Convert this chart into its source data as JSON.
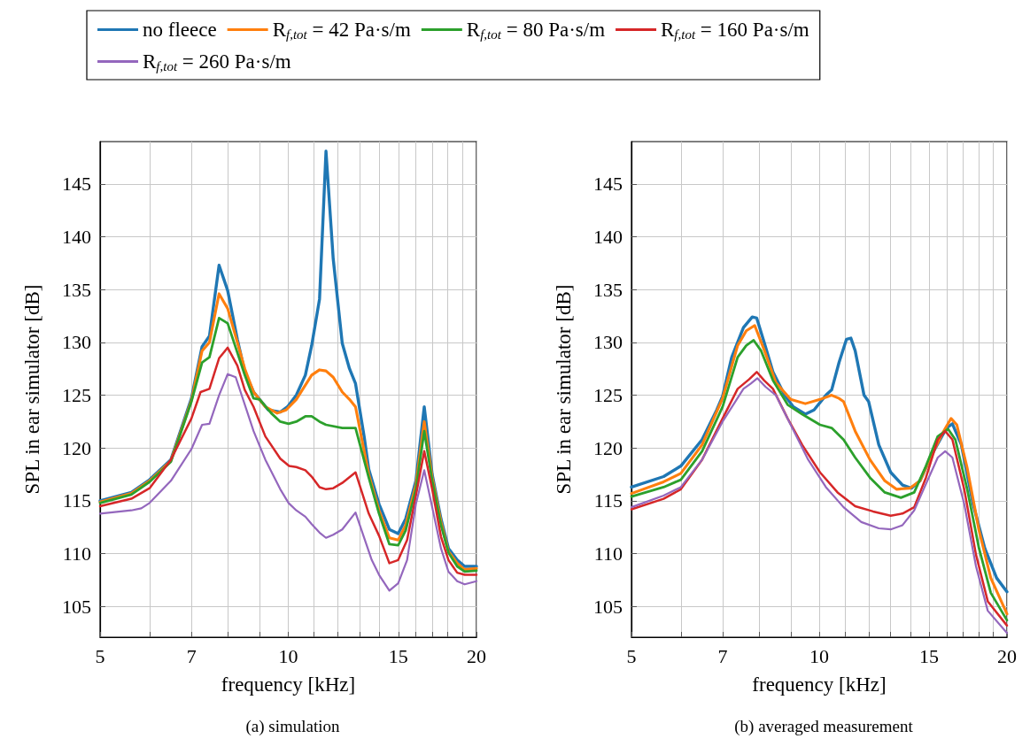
{
  "chart_data": [
    {
      "type": "line",
      "title": "(a) simulation",
      "xlabel": "frequency [kHz]",
      "ylabel": "SPL in ear simulator [dB]",
      "log": "x",
      "xlim": [
        5,
        20
      ],
      "xticks": [
        5,
        {
          "value": 6,
          "label": null
        },
        7,
        {
          "value": 8,
          "label": null
        },
        {
          "value": 9,
          "label": null
        },
        10,
        {
          "value": 11,
          "label": null
        },
        {
          "value": 12,
          "label": null
        },
        {
          "value": 13,
          "label": null
        },
        {
          "value": 14,
          "label": null
        },
        15,
        {
          "value": 16,
          "label": null
        },
        {
          "value": 17,
          "label": null
        },
        {
          "value": 18,
          "label": null
        },
        {
          "value": 19,
          "label": null
        },
        20
      ],
      "ylim": [
        102.1,
        149
      ],
      "yticks": [
        105,
        110,
        115,
        120,
        125,
        130,
        135,
        140,
        145
      ],
      "grid": true,
      "legend": "top",
      "marker": "none",
      "line_style": "solid",
      "series": [
        {
          "name": "no fleece",
          "color": "#1f77b4",
          "x": [
            5.0,
            5.61,
            6.0,
            6.49,
            7.0,
            7.28,
            7.48,
            7.75,
            8.0,
            8.29,
            8.52,
            8.8,
            9.29,
            9.71,
            9.97,
            10.3,
            10.65,
            10.9,
            11.22,
            11.49,
            11.8,
            12.2,
            12.53,
            12.81,
            13.23,
            13.45,
            13.97,
            14.51,
            14.99,
            15.41,
            16.0,
            16.5,
            16.99,
            17.55,
            18.04,
            18.63,
            19.15,
            20.0
          ],
          "values": [
            115.0,
            115.8,
            117.0,
            118.9,
            124.7,
            129.6,
            130.6,
            137.3,
            134.9,
            130.3,
            127.2,
            125.3,
            123.6,
            123.4,
            123.9,
            125.0,
            126.9,
            129.7,
            134.1,
            148.1,
            137.9,
            129.9,
            127.5,
            126.1,
            121.0,
            118.0,
            114.7,
            112.3,
            111.9,
            113.3,
            116.9,
            123.9,
            117.5,
            113.3,
            110.5,
            109.4,
            108.8,
            108.8
          ]
        },
        {
          "name": "R$_{f,tot}$ = 42 Pa·s/m",
          "color": "#ff7f0e",
          "x": [
            5.0,
            5.61,
            6.0,
            6.49,
            7.0,
            7.28,
            7.48,
            7.75,
            8.0,
            8.29,
            8.52,
            8.8,
            9.19,
            9.6,
            9.92,
            10.3,
            10.9,
            11.22,
            11.49,
            11.8,
            12.2,
            12.53,
            12.81,
            13.45,
            13.97,
            14.51,
            14.99,
            15.41,
            16.0,
            16.5,
            16.99,
            17.55,
            18.04,
            18.63,
            19.15,
            20.0
          ],
          "values": [
            114.9,
            115.7,
            116.9,
            118.8,
            124.5,
            129.2,
            130.0,
            134.6,
            133.2,
            130.0,
            127.5,
            125.3,
            123.9,
            123.3,
            123.6,
            124.6,
            126.9,
            127.4,
            127.3,
            126.7,
            125.3,
            124.6,
            123.9,
            117.5,
            114.1,
            111.5,
            111.3,
            112.7,
            116.5,
            122.5,
            117.2,
            113.0,
            110.2,
            109.1,
            108.5,
            108.6
          ]
        },
        {
          "name": "R$_{f,tot}$ = 80 Pa·s/m",
          "color": "#2ca02c",
          "x": [
            5.0,
            5.61,
            6.0,
            6.49,
            7.0,
            7.28,
            7.48,
            7.75,
            8.0,
            8.52,
            8.8,
            9.0,
            9.39,
            9.71,
            10.01,
            10.3,
            10.65,
            10.9,
            11.22,
            11.49,
            12.2,
            12.81,
            13.45,
            13.97,
            14.51,
            14.99,
            15.41,
            16.0,
            16.5,
            16.99,
            17.55,
            18.04,
            18.63,
            19.15,
            20.0
          ],
          "values": [
            114.8,
            115.6,
            116.8,
            118.7,
            124.4,
            128.1,
            128.6,
            132.3,
            131.8,
            126.9,
            124.7,
            124.6,
            123.3,
            122.5,
            122.3,
            122.5,
            123.0,
            123.0,
            122.5,
            122.2,
            121.9,
            121.9,
            117.2,
            113.8,
            110.9,
            110.8,
            112.2,
            116.1,
            121.6,
            116.9,
            112.7,
            110.1,
            108.8,
            108.3,
            108.4
          ]
        },
        {
          "name": "R$_{f,tot}$ = 160 Pa·s/m",
          "color": "#d62728",
          "x": [
            5.0,
            5.61,
            6.0,
            6.49,
            7.0,
            7.24,
            7.48,
            7.75,
            8.0,
            8.29,
            8.52,
            8.8,
            9.19,
            9.71,
            10.03,
            10.3,
            10.65,
            10.9,
            11.22,
            11.49,
            11.8,
            12.2,
            12.81,
            13.45,
            13.97,
            14.51,
            14.99,
            15.49,
            16.0,
            16.5,
            16.99,
            17.55,
            18.04,
            18.63,
            19.15,
            20.0
          ],
          "values": [
            114.5,
            115.2,
            116.2,
            118.9,
            122.8,
            125.3,
            125.6,
            128.5,
            129.5,
            127.8,
            125.5,
            123.9,
            121.1,
            119.0,
            118.3,
            118.2,
            117.9,
            117.3,
            116.3,
            116.1,
            116.2,
            116.7,
            117.7,
            113.8,
            111.7,
            109.1,
            109.4,
            111.3,
            115.5,
            119.7,
            116.1,
            111.6,
            109.4,
            108.2,
            108.0,
            108.0
          ]
        },
        {
          "name": "R$_{f,tot}$ = 260 Pa·s/m",
          "color": "#9467bd",
          "x": [
            5.0,
            5.61,
            5.82,
            6.0,
            6.49,
            7.0,
            7.28,
            7.48,
            7.75,
            8.0,
            8.24,
            8.8,
            9.19,
            9.71,
            10.01,
            10.3,
            10.65,
            10.9,
            11.22,
            11.49,
            11.8,
            12.2,
            12.81,
            13.6,
            13.97,
            14.51,
            14.99,
            15.49,
            16.0,
            16.5,
            16.99,
            17.55,
            18.04,
            18.63,
            19.15,
            20.0
          ],
          "values": [
            113.8,
            114.1,
            114.3,
            114.8,
            116.9,
            119.9,
            122.2,
            122.3,
            125.0,
            127.0,
            126.7,
            121.6,
            118.9,
            116.1,
            114.8,
            114.1,
            113.5,
            112.8,
            112.0,
            111.5,
            111.8,
            112.3,
            113.9,
            109.4,
            108.0,
            106.5,
            107.2,
            109.4,
            114.7,
            117.9,
            114.4,
            110.5,
            108.3,
            107.4,
            107.1,
            107.4
          ]
        }
      ]
    },
    {
      "type": "line",
      "title": "(b) averaged measurement",
      "xlabel": "frequency [kHz]",
      "ylabel": "SPL in ear simulator [dB]",
      "log": "x",
      "xlim": [
        5,
        20
      ],
      "xticks": [
        5,
        {
          "value": 6,
          "label": null
        },
        7,
        {
          "value": 8,
          "label": null
        },
        {
          "value": 9,
          "label": null
        },
        10,
        {
          "value": 11,
          "label": null
        },
        {
          "value": 12,
          "label": null
        },
        {
          "value": 13,
          "label": null
        },
        {
          "value": 14,
          "label": null
        },
        15,
        {
          "value": 16,
          "label": null
        },
        {
          "value": 17,
          "label": null
        },
        {
          "value": 18,
          "label": null
        },
        {
          "value": 19,
          "label": null
        },
        20
      ],
      "ylim": [
        102.1,
        149
      ],
      "yticks": [
        105,
        110,
        115,
        120,
        125,
        130,
        135,
        140,
        145
      ],
      "grid": true,
      "marker": "none",
      "line_style": "solid",
      "series": [
        {
          "color": "#1f77b4",
          "x": [
            5.0,
            5.63,
            6.0,
            6.49,
            6.85,
            7.0,
            7.24,
            7.56,
            7.81,
            7.94,
            8.16,
            8.43,
            8.8,
            9.09,
            9.5,
            9.81,
            10.25,
            10.47,
            10.76,
            11.06,
            11.24,
            11.42,
            11.8,
            12.0,
            12.46,
            13.02,
            13.6,
            14.05,
            14.51,
            15.16,
            16.0,
            16.35,
            16.9,
            17.65,
            18.43,
            19.25,
            20.0
          ],
          "values": [
            116.3,
            117.3,
            118.3,
            120.8,
            123.6,
            124.9,
            128.6,
            131.4,
            132.4,
            132.3,
            130.0,
            127.2,
            125.0,
            123.9,
            123.2,
            123.6,
            125.0,
            125.5,
            128.1,
            130.3,
            130.4,
            129.2,
            125.0,
            124.4,
            120.3,
            117.7,
            116.5,
            116.2,
            116.9,
            119.4,
            121.9,
            122.3,
            120.3,
            114.7,
            110.5,
            107.7,
            106.4
          ]
        },
        {
          "color": "#ff7f0e",
          "x": [
            5.0,
            5.63,
            6.0,
            6.49,
            7.0,
            7.4,
            7.64,
            7.88,
            8.16,
            8.52,
            9.0,
            9.5,
            10.03,
            10.47,
            10.76,
            10.94,
            11.42,
            12.06,
            12.74,
            13.3,
            13.97,
            14.51,
            15.16,
            15.83,
            16.27,
            16.62,
            17.27,
            18.04,
            18.84,
            20.0
          ],
          "values": [
            115.7,
            116.8,
            117.6,
            120.3,
            124.7,
            129.7,
            131.1,
            131.6,
            129.3,
            126.2,
            124.6,
            124.2,
            124.6,
            125.0,
            124.7,
            124.4,
            121.6,
            118.9,
            116.9,
            116.1,
            116.2,
            116.9,
            119.4,
            121.6,
            122.8,
            122.2,
            118.1,
            112.2,
            107.7,
            104.3
          ]
        },
        {
          "color": "#2ca02c",
          "x": [
            5.0,
            5.63,
            6.0,
            6.49,
            7.0,
            7.4,
            7.64,
            7.85,
            8.07,
            8.43,
            8.9,
            9.39,
            10.03,
            10.47,
            10.94,
            11.42,
            12.06,
            12.74,
            13.52,
            14.2,
            14.83,
            15.49,
            16.09,
            16.53,
            17.27,
            18.04,
            18.84,
            20.0
          ],
          "values": [
            115.4,
            116.3,
            117.0,
            119.7,
            123.9,
            128.6,
            129.7,
            130.2,
            129.2,
            126.4,
            124.1,
            123.2,
            122.2,
            121.9,
            120.8,
            119.1,
            117.2,
            115.8,
            115.3,
            115.8,
            118.3,
            121.1,
            121.8,
            120.8,
            116.1,
            110.5,
            106.3,
            103.7
          ]
        },
        {
          "color": "#d62728",
          "x": [
            5.0,
            5.63,
            6.0,
            6.49,
            7.0,
            7.4,
            7.72,
            7.94,
            8.16,
            8.43,
            8.9,
            9.39,
            10.03,
            10.7,
            11.42,
            12.2,
            13.02,
            13.6,
            14.2,
            14.83,
            15.49,
            15.92,
            16.35,
            17.08,
            17.84,
            18.63,
            20.0
          ],
          "values": [
            114.2,
            115.2,
            116.1,
            118.9,
            122.8,
            125.6,
            126.5,
            127.2,
            126.4,
            125.6,
            122.8,
            120.3,
            117.7,
            115.8,
            114.5,
            114.0,
            113.6,
            113.8,
            114.4,
            117.2,
            120.8,
            121.6,
            120.8,
            116.1,
            109.9,
            105.5,
            103.2
          ]
        },
        {
          "color": "#9467bd",
          "x": [
            5.0,
            5.63,
            6.0,
            6.49,
            7.0,
            7.56,
            7.77,
            7.96,
            8.2,
            8.52,
            9.0,
            9.6,
            10.25,
            10.94,
            11.68,
            12.46,
            13.02,
            13.6,
            14.2,
            14.83,
            15.49,
            15.92,
            16.35,
            17.08,
            17.84,
            18.63,
            20.0
          ],
          "values": [
            114.4,
            115.5,
            116.3,
            118.9,
            122.5,
            125.6,
            126.1,
            126.6,
            125.8,
            125.0,
            122.2,
            118.9,
            116.3,
            114.4,
            113.0,
            112.4,
            112.3,
            112.7,
            114.1,
            116.6,
            119.1,
            119.7,
            119.1,
            114.7,
            108.8,
            104.6,
            102.5
          ]
        }
      ]
    }
  ]
}
